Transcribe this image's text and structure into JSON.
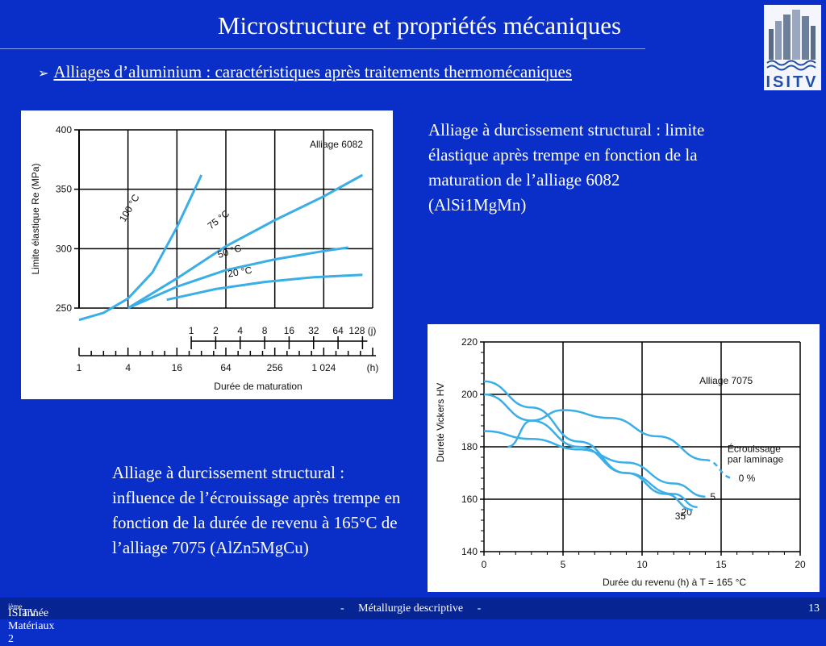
{
  "slide": {
    "title": "Microstructure et propriétés mécaniques",
    "subtitle": "Alliages d’aluminium : caractéristiques après traitements thermomécaniques",
    "bullet_glyph": "➢",
    "caption1": "Alliage à durcissement structural : limite élastique après trempe en fonction de la maturation de l’alliage 6082 (AlSi1MgMn)",
    "caption2": "Alliage à durcissement structural : influence de l’écrouissage après trempe en fonction de la durée de revenu à 165°C de l’alliage 7075 (AlZn5MgCu)",
    "logo_text": "ISITV"
  },
  "footer": {
    "left_prefix": "ISITV Matériaux 2",
    "left_sup": "ième",
    "left_suffix": " année",
    "center": "-     Métallurgie descriptive     -",
    "page_number": "13"
  },
  "colors": {
    "background": "#0a2fc8",
    "curve": "#3aaee6",
    "footer": "#062492"
  },
  "chart_data": [
    {
      "type": "line",
      "title": "Alliage 6082",
      "ylabel": "Limite élastique Re (MPa)",
      "xlabel": "Durée de maturation",
      "xscale": "log2",
      "ylim": [
        250,
        400
      ],
      "yticks": [
        250,
        300,
        350,
        400
      ],
      "x_hours_ticks": [
        "1",
        "4",
        "16",
        "64",
        "256",
        "1 024",
        "(h)"
      ],
      "x_days_ticks": [
        "1",
        "2",
        "4",
        "8",
        "16",
        "32",
        "64",
        "128 (j)"
      ],
      "series": [
        {
          "name": "100 °C",
          "x_hours": [
            1,
            2,
            4,
            8,
            16,
            32
          ],
          "values": [
            240,
            246,
            258,
            280,
            318,
            362
          ]
        },
        {
          "name": "75 °C",
          "x_hours": [
            4,
            16,
            64,
            256,
            1024,
            3072
          ],
          "values": [
            250,
            275,
            302,
            324,
            344,
            362
          ]
        },
        {
          "name": "50 °C",
          "x_hours": [
            4,
            16,
            64,
            256,
            1024,
            2048
          ],
          "values": [
            250,
            268,
            282,
            291,
            298,
            301
          ]
        },
        {
          "name": "20 °C",
          "x_hours": [
            12,
            48,
            192,
            768,
            3072
          ],
          "values": [
            257,
            266,
            272,
            276,
            278
          ]
        }
      ]
    },
    {
      "type": "line",
      "title": "Alliage 7075",
      "ylabel": "Dureté Vickers HV",
      "xlabel": "Durée du revenu (h) à T = 165 °C",
      "xlim": [
        0,
        20
      ],
      "ylim": [
        140,
        220
      ],
      "xticks": [
        0,
        5,
        10,
        15,
        20
      ],
      "yticks": [
        140,
        160,
        180,
        200,
        220
      ],
      "annotation": "Écrouissage par laminage",
      "series": [
        {
          "name": "0 %",
          "x": [
            1.5,
            3,
            5,
            8,
            11,
            14,
            15.8
          ],
          "values": [
            180,
            190,
            194,
            191,
            184,
            175,
            168
          ],
          "dashed_from_x": 15.2
        },
        {
          "name": "5",
          "x": [
            0,
            3,
            6,
            9,
            12,
            14
          ],
          "values": [
            186,
            183,
            179,
            174,
            166,
            161
          ]
        },
        {
          "name": "20",
          "x": [
            0,
            3,
            6,
            9,
            12,
            13.5
          ],
          "values": [
            200,
            190,
            180,
            170,
            162,
            157
          ]
        },
        {
          "name": "35",
          "x": [
            0,
            3,
            6,
            9,
            11.5,
            13.2
          ],
          "values": [
            205,
            195,
            182,
            170,
            162,
            156
          ]
        }
      ]
    }
  ]
}
